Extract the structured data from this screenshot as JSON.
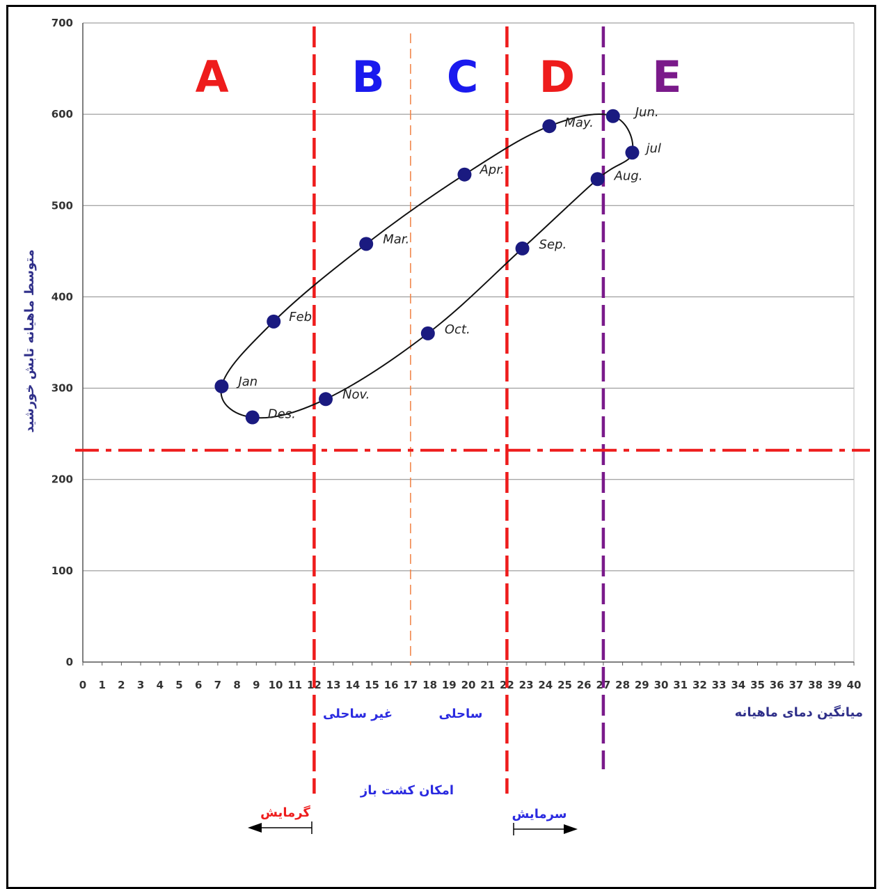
{
  "chart_data": {
    "type": "line",
    "xlabel": "میانگین دمای ماهیانه",
    "ylabel": "متوسط ماهیانه تابش خورشید",
    "xlim": [
      0,
      40
    ],
    "ylim": [
      0,
      700
    ],
    "x_ticks": [
      "0",
      "1",
      "2",
      "3",
      "4",
      "5",
      "6",
      "7",
      "8",
      "9",
      "10",
      "11",
      "12",
      "13",
      "14",
      "15",
      "16",
      "17",
      "18",
      "19",
      "20",
      "21",
      "22",
      "23",
      "24",
      "25",
      "26",
      "27",
      "28",
      "29",
      "30",
      "31",
      "32",
      "33",
      "34",
      "35",
      "36",
      "37",
      "38",
      "39",
      "40"
    ],
    "y_ticks": [
      "0",
      "100",
      "200",
      "300",
      "400",
      "500",
      "600",
      "700"
    ],
    "grid": "horizontal",
    "series": [
      {
        "points": [
          {
            "label": "Jan",
            "x": 7.2,
            "y": 302
          },
          {
            "label": "Feb",
            "x": 9.9,
            "y": 373
          },
          {
            "label": "Mar.",
            "x": 14.7,
            "y": 458
          },
          {
            "label": "Apr.",
            "x": 19.8,
            "y": 534
          },
          {
            "label": "May.",
            "x": 24.2,
            "y": 587
          },
          {
            "label": "Jun.",
            "x": 27.5,
            "y": 598
          },
          {
            "label": "jul",
            "x": 28.5,
            "y": 558
          },
          {
            "label": "Aug.",
            "x": 26.7,
            "y": 529
          },
          {
            "label": "Sep.",
            "x": 22.8,
            "y": 453
          },
          {
            "label": "Oct.",
            "x": 17.9,
            "y": 360
          },
          {
            "label": "Nov.",
            "x": 12.6,
            "y": 288
          },
          {
            "label": "Des.",
            "x": 8.8,
            "y": 268
          }
        ]
      }
    ],
    "zones": [
      {
        "letter": "A",
        "color": "#ee1c1c",
        "x": 6.7
      },
      {
        "letter": "B",
        "color": "#1a1aee",
        "x": 14.8
      },
      {
        "letter": "C",
        "color": "#1a1aee",
        "x": 19.7
      },
      {
        "letter": "D",
        "color": "#ee1c1c",
        "x": 24.6
      },
      {
        "letter": "E",
        "color": "#7a1a8a",
        "x": 30.3
      }
    ],
    "reference_lines": [
      {
        "orientation": "vertical",
        "x": 12,
        "style": "dashed",
        "color": "#ee1c1c"
      },
      {
        "orientation": "vertical",
        "x": 17,
        "style": "thin-dashed",
        "color": "#f08040"
      },
      {
        "orientation": "vertical",
        "x": 22,
        "style": "dashed",
        "color": "#ee1c1c"
      },
      {
        "orientation": "vertical",
        "x": 27,
        "style": "dashed",
        "color": "#7a1a8a"
      },
      {
        "orientation": "horizontal",
        "y": 232,
        "style": "dash-dot",
        "color": "#ee1c1c"
      }
    ],
    "annotations": {
      "non_coastal": "غیر ساحلی",
      "coastal": "ساحلی",
      "open_cultivation": "امکان کشت باز",
      "heating": "گرمایش",
      "cooling": "سرمایش"
    },
    "colors": {
      "marker": "#1a1a80",
      "curve": "#111111",
      "grid": "#888888",
      "annotation_blue": "#2a2ae0",
      "annotation_red": "#ee1c1c",
      "axis_title": "#30308a"
    }
  }
}
